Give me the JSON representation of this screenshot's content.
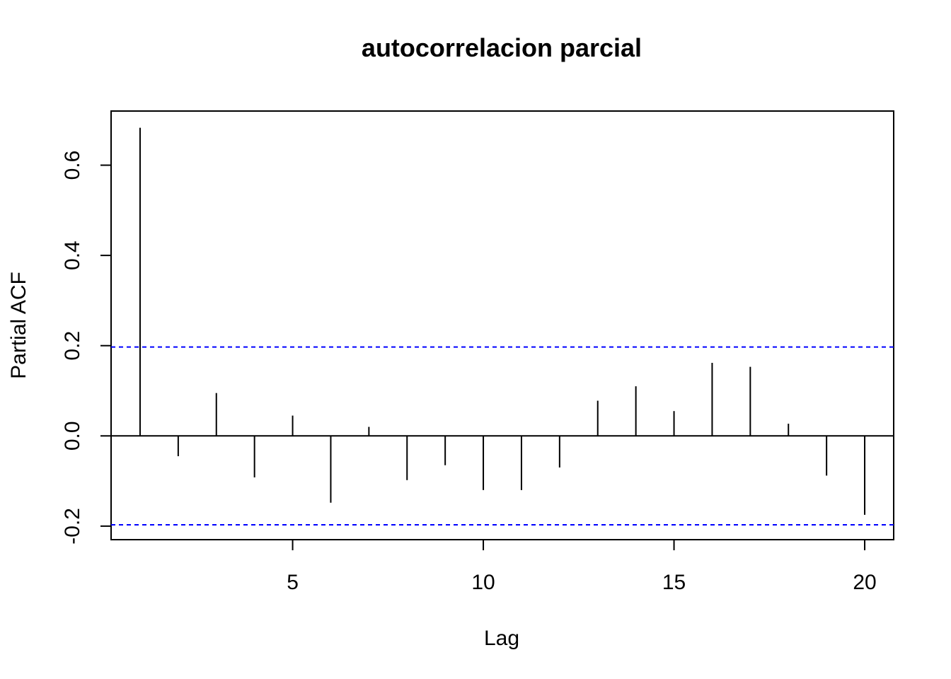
{
  "chart_data": {
    "type": "bar",
    "title": "autocorrelacion parcial",
    "xlabel": "Lag",
    "ylabel": "Partial ACF",
    "x": [
      1,
      2,
      3,
      4,
      5,
      6,
      7,
      8,
      9,
      10,
      11,
      12,
      13,
      14,
      15,
      16,
      17,
      18,
      19,
      20
    ],
    "values": [
      0.683,
      -0.045,
      0.095,
      -0.092,
      0.045,
      -0.148,
      0.02,
      -0.098,
      -0.065,
      -0.12,
      -0.12,
      -0.07,
      0.078,
      0.11,
      0.055,
      0.162,
      0.153,
      0.027,
      -0.088,
      -0.175
    ],
    "xlim": [
      0.24,
      20.76
    ],
    "ylim": [
      -0.23,
      0.72
    ],
    "x_ticks": [
      5,
      10,
      15,
      20
    ],
    "x_tick_labels": [
      "5",
      "10",
      "15",
      "20"
    ],
    "y_ticks": [
      -0.2,
      0.0,
      0.2,
      0.4,
      0.6
    ],
    "y_tick_labels": [
      "-0.2",
      "0.0",
      "0.2",
      "0.4",
      "0.6"
    ],
    "confidence_bounds": [
      0.197,
      -0.197
    ],
    "colors": {
      "bars": "#000000",
      "confidence": "#0000ff",
      "zero_line": "#000000"
    },
    "grid": false,
    "legend": "none"
  }
}
